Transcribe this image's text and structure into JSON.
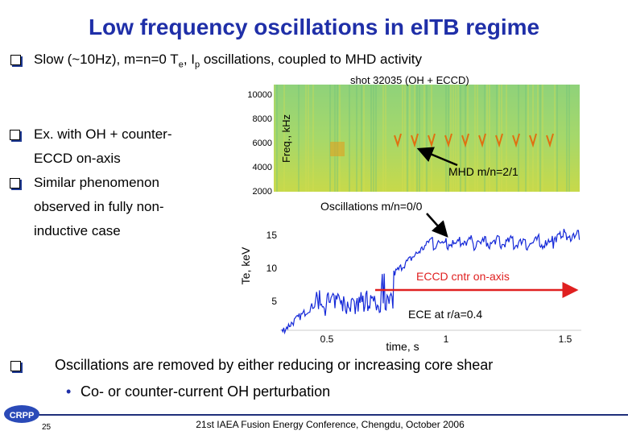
{
  "title": "Low frequency oscillations in eITB regime",
  "bullet_top": [
    "Slow (~10Hz), m=n=0 T",
    "e",
    ", I",
    "p",
    " oscillations, coupled to MHD activity"
  ],
  "bullets_left": [
    "Ex. with OH + counter-ECCD on-axis",
    "Similar phenomenon observed in fully non-inductive case"
  ],
  "bullet_bottom": "Oscillations are removed by either reducing or increasing core shear",
  "sub_bullet": "Co- or counter-current OH perturbation",
  "figure": {
    "spectrogram": {
      "title": "shot 32035 (OH + ECCD)",
      "ylabel": "Freq., kHz",
      "yticks": [
        "10000",
        "8000",
        "6000",
        "4000",
        "2000"
      ],
      "annotation": "MHD m/n=2/1"
    },
    "trace": {
      "annotation_top": "Oscillations m/n=0/0",
      "ylabel": "Te, keV",
      "yticks": [
        "15",
        "10",
        "5"
      ],
      "xticks": [
        "0.5",
        "1",
        "1.5"
      ],
      "xlabel": "time, s",
      "heating": "ECCD cntr on-axis",
      "diagnostic": "ECE at r/a=0.4"
    }
  },
  "footer": {
    "logo": "CRPP",
    "page": "25",
    "text": "21st IAEA Fusion Energy Conference, Chengdu, October 2006"
  }
}
